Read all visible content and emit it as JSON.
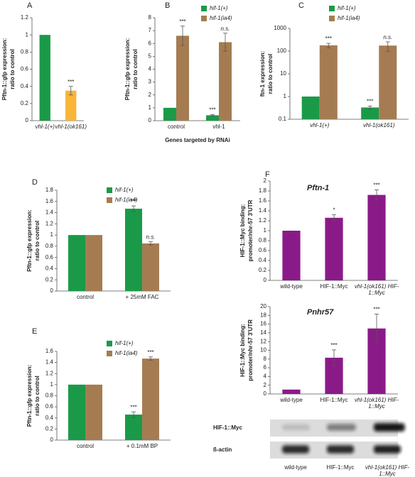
{
  "chart_data": [
    {
      "type": "bar",
      "label": "A",
      "ylabel": [
        "Pftn-1::gfp expression:",
        "ratio to control"
      ],
      "categories": [
        "vhl-1(+)",
        "vhl-1(ok161)"
      ],
      "series": [
        {
          "colors": [
            "#1a9a48",
            "#f9b43a"
          ],
          "values": [
            1,
            0.35
          ],
          "errors": [
            null,
            0.05
          ],
          "annotations": [
            null,
            "***"
          ]
        }
      ],
      "ylim": [
        0,
        1.2
      ],
      "yticks": [
        0,
        0.2,
        0.4,
        0.6,
        0.8,
        1,
        1.2
      ]
    },
    {
      "type": "bar",
      "label": "B",
      "ylabel": [
        "Pftn-1::gfp expression:",
        "ratio to control"
      ],
      "xlabel": "Genes targeted by RNAi",
      "categories": [
        "control",
        "vhl-1"
      ],
      "series": [
        {
          "name": "hif-1(+)",
          "color": "#1a9a48",
          "values": [
            1,
            0.42
          ],
          "errors": [
            null,
            0.05
          ],
          "annotations": [
            null,
            "***"
          ]
        },
        {
          "name": "hif-1(ia4)",
          "color": "#a57c52",
          "values": [
            6.6,
            6.1
          ],
          "errors": [
            0.75,
            0.7
          ],
          "annotations": [
            "***",
            "n.s."
          ]
        }
      ],
      "ylim": [
        0,
        8
      ],
      "yticks": [
        0,
        1,
        2,
        3,
        4,
        5,
        6,
        7,
        8
      ]
    },
    {
      "type": "bar",
      "label": "C",
      "ylabel": [
        "ftn-1 expression:",
        "ratio to control"
      ],
      "log": true,
      "categories": [
        "vhl-1(+)",
        "vhl-1(ok161)"
      ],
      "series": [
        {
          "name": "hif-1(+)",
          "color": "#1a9a48",
          "values": [
            1,
            0.33
          ],
          "errors": [
            null,
            0.05
          ],
          "annotations": [
            null,
            "***"
          ]
        },
        {
          "name": "hif-1(ia4)",
          "color": "#a57c52",
          "values": [
            180,
            175
          ],
          "errors": [
            40,
            80
          ],
          "annotations": [
            "***",
            "n.s."
          ]
        }
      ],
      "ylim": [
        0.1,
        1000
      ],
      "yticks": [
        0.1,
        1,
        10,
        100,
        1000
      ]
    },
    {
      "type": "bar",
      "label": "D",
      "ylabel": [
        "Pftn-1::gfp expression:",
        "ratio to control"
      ],
      "categories": [
        "control",
        "+ 25mM FAC"
      ],
      "series": [
        {
          "name": "hif-1(+)",
          "color": "#1a9a48",
          "values": [
            1,
            1.47
          ],
          "errors": [
            null,
            0.05
          ],
          "annotations": [
            null,
            "***"
          ]
        },
        {
          "name": "hif-1(ia4)",
          "color": "#a57c52",
          "values": [
            1,
            0.85
          ],
          "errors": [
            null,
            0.03
          ],
          "annotations": [
            null,
            "n.s."
          ]
        }
      ],
      "ylim": [
        0,
        1.8
      ],
      "yticks": [
        0,
        0.2,
        0.4,
        0.6,
        0.8,
        1,
        1.2,
        1.4,
        1.6,
        1.8
      ]
    },
    {
      "type": "bar",
      "label": "E",
      "ylabel": [
        "Pftn-1::gfp expression:",
        "ratio to control"
      ],
      "categories": [
        "control",
        "+ 0.1mM BP"
      ],
      "series": [
        {
          "name": "hif-1(+)",
          "color": "#1a9a48",
          "values": [
            1,
            0.46
          ],
          "errors": [
            null,
            0.05
          ],
          "annotations": [
            null,
            "***"
          ]
        },
        {
          "name": "hif-1(ia4)",
          "color": "#a57c52",
          "values": [
            1,
            1.47
          ],
          "errors": [
            null,
            0.03
          ],
          "annotations": [
            null,
            "***"
          ]
        }
      ],
      "ylim": [
        0,
        1.6
      ],
      "yticks": [
        0,
        0.2,
        0.4,
        0.6,
        0.8,
        1,
        1.2,
        1.4,
        1.6
      ]
    },
    {
      "type": "bar",
      "label": "F",
      "title": "Pftn-1",
      "ylabel": [
        "HIF-1::Myc binding:",
        "promoter/nhr-57 3'UTR"
      ],
      "categories": [
        "wild-type",
        "HIF-1::Myc",
        "vhl-1(ok161) HIF-1::Myc"
      ],
      "series": [
        {
          "color": "#8b1a89",
          "values": [
            1,
            1.26,
            1.72
          ],
          "errors": [
            null,
            0.06,
            0.1
          ],
          "annotations": [
            null,
            "*",
            "***"
          ]
        }
      ],
      "ylim": [
        0,
        2
      ],
      "yticks": [
        0,
        0.2,
        0.4,
        0.6,
        0.8,
        1,
        1.2,
        1.4,
        1.6,
        1.8,
        2
      ]
    },
    {
      "type": "bar",
      "title": "Pnhr57",
      "ylabel": [
        "HIF-1::Myc binding:",
        "promoter/nhr-57 3'UTR"
      ],
      "categories": [
        "wild-type",
        "HIF-1::Myc",
        "vhl-1(ok161) HIF-1::Myc"
      ],
      "series": [
        {
          "color": "#8b1a89",
          "values": [
            1,
            8.3,
            15
          ],
          "errors": [
            null,
            1.8,
            3.3
          ],
          "annotations": [
            null,
            "***",
            "***"
          ]
        }
      ],
      "ylim": [
        0,
        20
      ],
      "yticks": [
        0,
        2,
        4,
        6,
        8,
        10,
        12,
        14,
        16,
        18,
        20
      ]
    }
  ],
  "blot": {
    "rows": [
      "HIF-1::Myc",
      "ß-actin"
    ],
    "lanes": [
      "wild-type",
      "HIF-1::Myc",
      "vhl-1(ok161) HIF-1::Myc"
    ]
  }
}
